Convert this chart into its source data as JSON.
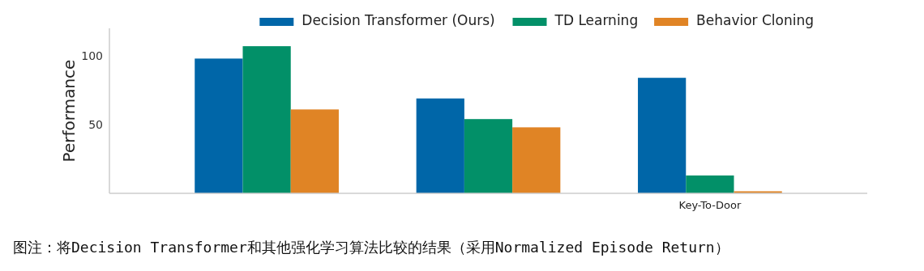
{
  "chart_data": {
    "type": "bar",
    "ylabel": "Performance",
    "categories": [
      null,
      null,
      "Key-To-Door"
    ],
    "series": [
      {
        "name": "Decision Transformer (Ours)",
        "color": "#0066a8",
        "values": [
          98,
          69,
          84
        ]
      },
      {
        "name": "TD Learning",
        "color": "#029068",
        "values": [
          107,
          54,
          13
        ]
      },
      {
        "name": "Behavior Cloning",
        "color": "#e08425",
        "values": [
          61,
          48,
          1.5
        ]
      }
    ],
    "ylim": [
      0,
      120
    ],
    "yticks": [
      50,
      100
    ],
    "grid": false,
    "legend": "top",
    "annotations": [
      "图注：将Decision Transformer和其他强化学习算法比较的结果（采用Normalized Episode Return）"
    ]
  }
}
